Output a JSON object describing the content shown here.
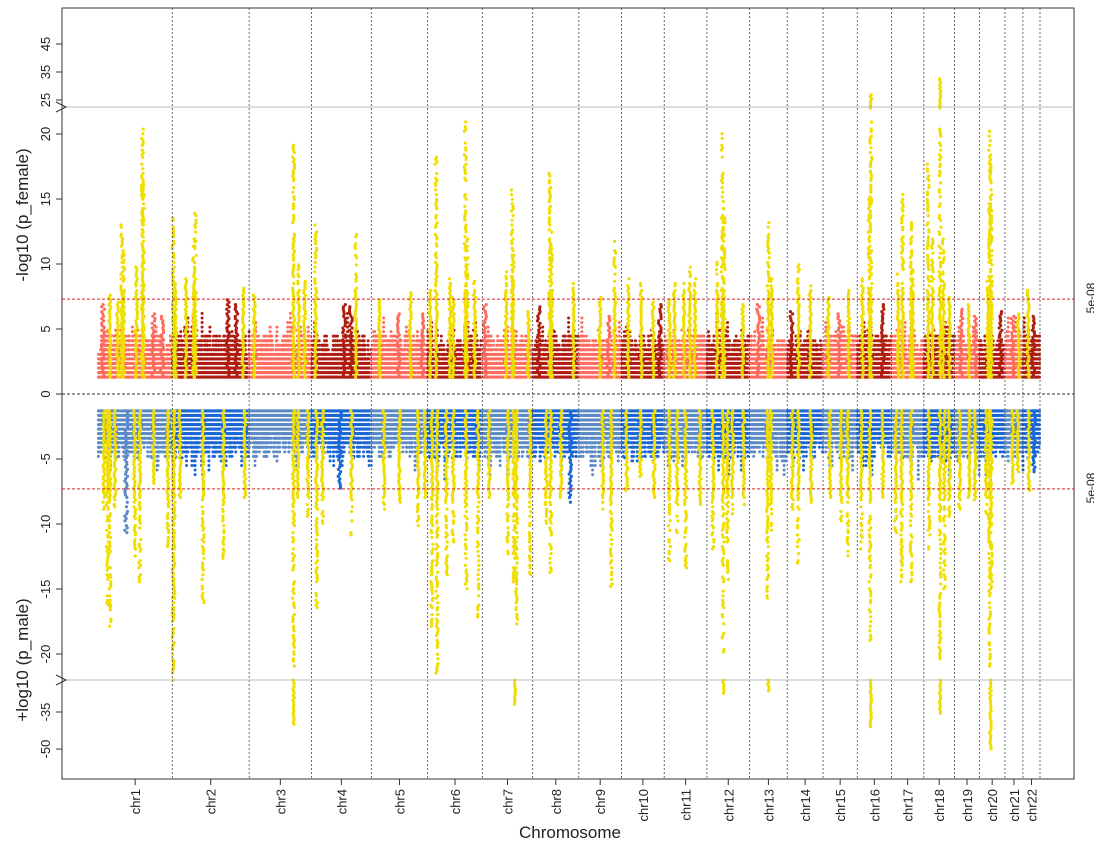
{
  "chart_data": {
    "type": "scatter",
    "subtype": "miami_plot",
    "xlabel": "Chromosome",
    "ylabel_top": "-log10 (p_female)",
    "ylabel_bottom": "+log10 (p_male)",
    "categories": [
      "chr1",
      "chr2",
      "chr3",
      "chr4",
      "chr5",
      "chr6",
      "chr7",
      "chr8",
      "chr9",
      "chr10",
      "chr11",
      "chr12",
      "chr13",
      "chr14",
      "chr15",
      "chr16",
      "chr17",
      "chr18",
      "chr19",
      "chr20",
      "chr21",
      "chr22"
    ],
    "y_ticks_top_main": [
      "0",
      "5",
      "10",
      "15",
      "20"
    ],
    "y_ticks_top_break": [
      "25",
      "35",
      "45"
    ],
    "y_ticks_bottom_main": [
      "-5",
      "-10",
      "-15",
      "-20"
    ],
    "y_ticks_bottom_break": [
      "-35",
      "-50"
    ],
    "y_main_range": [
      -22,
      22
    ],
    "axis_break": "y = ±22 (compressed upper segments)",
    "threshold": {
      "label": "5e-08",
      "value": 7.3,
      "color": "#dd2222"
    },
    "colors": {
      "female_light": "#ff6b5e",
      "female_dark": "#b01c10",
      "male_light": "#5b8ac6",
      "male_dark": "#1a66d6",
      "highlight": "#f0de00"
    },
    "series": [
      {
        "name": "female",
        "direction": "up"
      },
      {
        "name": "male",
        "direction": "down"
      }
    ],
    "chromosomes": [
      {
        "name": "chr1",
        "len": 8.7,
        "top_peaks": [
          [
            1.4,
            7.6,
            "h"
          ],
          [
            2.3,
            7.2,
            "h"
          ],
          [
            2.8,
            13.7,
            "h"
          ],
          [
            3.0,
            11.2,
            "h"
          ],
          [
            4.5,
            9.8,
            "h"
          ],
          [
            5.2,
            20.7,
            "h"
          ],
          [
            5.3,
            16.5,
            "h"
          ],
          [
            0.6,
            7.0,
            "n"
          ],
          [
            6.5,
            6.2,
            "n"
          ],
          [
            7.5,
            6.0,
            "n"
          ]
        ],
        "bot_peaks": [
          [
            0.7,
            9.0,
            "h"
          ],
          [
            1.1,
            16.5,
            "h"
          ],
          [
            1.4,
            18.1,
            "h"
          ],
          [
            2.0,
            8.8,
            "h"
          ],
          [
            3.3,
            10.8,
            "n"
          ],
          [
            4.3,
            12.5,
            "h"
          ],
          [
            4.9,
            14.5,
            "h"
          ],
          [
            6.5,
            7.0,
            "h"
          ],
          [
            8.2,
            12.0,
            "h"
          ]
        ],
        "top_gw": [],
        "bot_gw": []
      },
      {
        "name": "chr2",
        "len": 9.0,
        "top_peaks": [
          [
            0.1,
            13.7,
            "h"
          ],
          [
            0.4,
            8.5,
            "h"
          ],
          [
            1.6,
            9.0,
            "h"
          ],
          [
            2.5,
            12.0,
            "h"
          ],
          [
            2.7,
            14.0,
            "h"
          ],
          [
            6.5,
            7.3,
            "n"
          ],
          [
            7.5,
            7.0,
            "n"
          ],
          [
            8.3,
            8.2,
            "h"
          ]
        ],
        "bot_peaks": [
          [
            0.1,
            22.0,
            "h"
          ],
          [
            0.2,
            17.5,
            "h"
          ],
          [
            0.9,
            8.0,
            "h"
          ],
          [
            3.6,
            16.7,
            "h"
          ],
          [
            6.0,
            12.8,
            "h"
          ],
          [
            8.5,
            8.0,
            "h"
          ]
        ],
        "top_gw": [],
        "bot_gw": []
      },
      {
        "name": "chr3",
        "len": 7.3,
        "top_peaks": [
          [
            0.6,
            7.6,
            "h"
          ],
          [
            5.2,
            19.3,
            "h"
          ],
          [
            5.8,
            10.0,
            "h"
          ],
          [
            6.5,
            9.0,
            "h"
          ]
        ],
        "bot_peaks": [
          [
            5.2,
            21.0,
            "h"
          ],
          [
            5.7,
            8.0,
            "h"
          ],
          [
            6.9,
            9.5,
            "h"
          ]
        ],
        "top_gw": [],
        "bot_gw": [
          [
            5.2,
            40
          ]
        ]
      },
      {
        "name": "chr4",
        "len": 7.0,
        "top_peaks": [
          [
            0.5,
            13.3,
            "h"
          ],
          [
            5.2,
            12.6,
            "h"
          ],
          [
            3.8,
            6.9,
            "n"
          ],
          [
            4.6,
            6.8,
            "n"
          ]
        ],
        "bot_peaks": [
          [
            0.6,
            17.0,
            "h"
          ],
          [
            1.3,
            10.0,
            "h"
          ],
          [
            4.7,
            10.9,
            "h"
          ],
          [
            3.3,
            7.3,
            "n"
          ]
        ],
        "top_gw": [],
        "bot_gw": []
      },
      {
        "name": "chr5",
        "len": 6.6,
        "top_peaks": [
          [
            1.0,
            7.3,
            "h"
          ],
          [
            3.2,
            6.3,
            "n"
          ],
          [
            4.6,
            7.8,
            "h"
          ],
          [
            6.0,
            6.2,
            "n"
          ]
        ],
        "bot_peaks": [
          [
            1.5,
            9.2,
            "h"
          ],
          [
            3.3,
            8.5,
            "h"
          ],
          [
            5.5,
            10.3,
            "h"
          ],
          [
            6.3,
            8.0,
            "h"
          ]
        ],
        "top_gw": [],
        "bot_gw": []
      },
      {
        "name": "chr6",
        "len": 6.4,
        "top_peaks": [
          [
            0.3,
            8.0,
            "h"
          ],
          [
            1.0,
            18.7,
            "h"
          ],
          [
            2.6,
            9.0,
            "h"
          ],
          [
            3.0,
            7.5,
            "h"
          ],
          [
            4.4,
            21.0,
            "h"
          ],
          [
            4.6,
            12.0,
            "h"
          ],
          [
            5.5,
            8.8,
            "h"
          ]
        ],
        "bot_peaks": [
          [
            0.5,
            18.0,
            "h"
          ],
          [
            1.1,
            21.8,
            "h"
          ],
          [
            2.2,
            14.0,
            "h"
          ],
          [
            3.0,
            11.7,
            "h"
          ],
          [
            4.5,
            15.3,
            "h"
          ],
          [
            5.9,
            17.3,
            "h"
          ]
        ],
        "top_gw": [],
        "bot_gw": []
      },
      {
        "name": "chr7",
        "len": 5.9,
        "top_peaks": [
          [
            0.3,
            7.0,
            "n"
          ],
          [
            2.8,
            10.0,
            "h"
          ],
          [
            3.5,
            15.8,
            "h"
          ],
          [
            3.6,
            11.0,
            "h"
          ],
          [
            5.4,
            6.5,
            "h"
          ]
        ],
        "bot_peaks": [
          [
            0.8,
            8.0,
            "h"
          ],
          [
            3.0,
            12.5,
            "h"
          ],
          [
            3.7,
            14.5,
            "h"
          ],
          [
            4.0,
            18.0,
            "h"
          ],
          [
            5.6,
            14.0,
            "h"
          ]
        ],
        "top_gw": [],
        "bot_gw": [
          [
            3.8,
            32
          ]
        ]
      },
      {
        "name": "chr8",
        "len": 5.4,
        "top_peaks": [
          [
            0.7,
            6.8,
            "n"
          ],
          [
            2.0,
            17.1,
            "h"
          ],
          [
            2.2,
            12.5,
            "h"
          ],
          [
            4.8,
            9.0,
            "h"
          ]
        ],
        "bot_peaks": [
          [
            1.6,
            10.0,
            "h"
          ],
          [
            2.1,
            14.0,
            "h"
          ],
          [
            3.3,
            8.3,
            "h"
          ],
          [
            4.4,
            8.5,
            "n"
          ]
        ],
        "top_gw": [],
        "bot_gw": []
      },
      {
        "name": "chr9",
        "len": 5.0,
        "top_peaks": [
          [
            2.5,
            7.5,
            "h"
          ],
          [
            4.2,
            11.8,
            "h"
          ],
          [
            3.5,
            6.0,
            "n"
          ]
        ],
        "bot_peaks": [
          [
            3.8,
            15.5,
            "h"
          ],
          [
            2.8,
            9.0,
            "h"
          ]
        ],
        "top_gw": [],
        "bot_gw": []
      },
      {
        "name": "chr10",
        "len": 5.0,
        "top_peaks": [
          [
            0.8,
            9.1,
            "h"
          ],
          [
            2.3,
            8.5,
            "h"
          ],
          [
            3.7,
            7.2,
            "h"
          ],
          [
            4.5,
            7.0,
            "n"
          ]
        ],
        "bot_peaks": [
          [
            0.6,
            7.5,
            "h"
          ],
          [
            2.2,
            6.5,
            "h"
          ],
          [
            3.8,
            8.0,
            "h"
          ]
        ],
        "top_gw": [],
        "bot_gw": []
      },
      {
        "name": "chr11",
        "len": 5.0,
        "top_peaks": [
          [
            0.6,
            7.3,
            "h"
          ],
          [
            1.2,
            9.0,
            "h"
          ],
          [
            2.3,
            8.5,
            "h"
          ],
          [
            3.0,
            10.0,
            "h"
          ],
          [
            3.6,
            9.0,
            "h"
          ]
        ],
        "bot_peaks": [
          [
            0.6,
            13.0,
            "h"
          ],
          [
            1.5,
            11.0,
            "h"
          ],
          [
            2.5,
            13.5,
            "h"
          ],
          [
            4.2,
            8.5,
            "h"
          ]
        ],
        "top_gw": [],
        "bot_gw": []
      },
      {
        "name": "chr12",
        "len": 5.0,
        "top_peaks": [
          [
            1.2,
            10.2,
            "h"
          ],
          [
            1.8,
            20.1,
            "h"
          ],
          [
            2.0,
            14.5,
            "h"
          ],
          [
            4.2,
            7.0,
            "h"
          ]
        ],
        "bot_peaks": [
          [
            0.7,
            12.0,
            "h"
          ],
          [
            1.9,
            20.0,
            "h"
          ],
          [
            2.4,
            14.5,
            "h"
          ],
          [
            3.0,
            10.0,
            "h"
          ],
          [
            4.3,
            8.5,
            "h"
          ]
        ],
        "top_gw": [],
        "bot_gw": [
          [
            1.9,
            28
          ]
        ]
      },
      {
        "name": "chr13",
        "len": 4.4,
        "top_peaks": [
          [
            1.0,
            7.0,
            "n"
          ],
          [
            2.2,
            13.3,
            "h"
          ],
          [
            2.6,
            9.0,
            "h"
          ]
        ],
        "bot_peaks": [
          [
            2.1,
            16.0,
            "h"
          ],
          [
            2.5,
            11.0,
            "h"
          ]
        ],
        "top_gw": [],
        "bot_gw": [
          [
            2.2,
            27
          ]
        ]
      },
      {
        "name": "chr14",
        "len": 4.2,
        "top_peaks": [
          [
            0.5,
            6.5,
            "n"
          ],
          [
            1.3,
            10.0,
            "h"
          ],
          [
            2.7,
            8.5,
            "h"
          ]
        ],
        "bot_peaks": [
          [
            0.6,
            9.0,
            "h"
          ],
          [
            1.3,
            13.0,
            "h"
          ],
          [
            2.8,
            8.5,
            "h"
          ]
        ],
        "top_gw": [],
        "bot_gw": []
      },
      {
        "name": "chr15",
        "len": 4.0,
        "top_peaks": [
          [
            0.6,
            7.5,
            "h"
          ],
          [
            1.9,
            6.3,
            "n"
          ],
          [
            3.0,
            8.0,
            "h"
          ]
        ],
        "bot_peaks": [
          [
            0.8,
            8.0,
            "h"
          ],
          [
            2.1,
            10.0,
            "h"
          ],
          [
            2.9,
            12.5,
            "h"
          ]
        ],
        "top_gw": [],
        "bot_gw": []
      },
      {
        "name": "chr16",
        "len": 4.0,
        "top_peaks": [
          [
            0.6,
            9.0,
            "h"
          ],
          [
            1.6,
            21.0,
            "h"
          ],
          [
            1.4,
            15.0,
            "h"
          ],
          [
            3.0,
            7.0,
            "n"
          ]
        ],
        "bot_peaks": [
          [
            0.5,
            12.0,
            "h"
          ],
          [
            1.5,
            19.0,
            "h"
          ],
          [
            3.0,
            8.0,
            "h"
          ]
        ],
        "top_gw": [
          [
            1.6,
            27
          ]
        ],
        "bot_gw": [
          [
            1.6,
            41
          ]
        ]
      },
      {
        "name": "chr17",
        "len": 3.8,
        "top_peaks": [
          [
            0.8,
            9.5,
            "h"
          ],
          [
            1.3,
            15.5,
            "h"
          ],
          [
            2.3,
            13.3,
            "h"
          ],
          [
            2.5,
            9.8,
            "h"
          ]
        ],
        "bot_peaks": [
          [
            0.5,
            11.0,
            "h"
          ],
          [
            1.2,
            14.5,
            "h"
          ],
          [
            2.3,
            14.5,
            "h"
          ]
        ],
        "top_gw": [],
        "bot_gw": []
      },
      {
        "name": "chr18",
        "len": 3.6,
        "top_peaks": [
          [
            0.5,
            17.8,
            "h"
          ],
          [
            1.0,
            12.0,
            "h"
          ],
          [
            1.9,
            20.5,
            "h"
          ],
          [
            2.3,
            12.0,
            "h"
          ],
          [
            3.0,
            7.5,
            "h"
          ]
        ],
        "bot_peaks": [
          [
            0.6,
            12.0,
            "h"
          ],
          [
            1.9,
            20.5,
            "h"
          ],
          [
            2.4,
            15.0,
            "h"
          ],
          [
            3.0,
            9.5,
            "h"
          ]
        ],
        "top_gw": [
          [
            1.9,
            33
          ]
        ],
        "bot_gw": [
          [
            1.9,
            36
          ]
        ]
      },
      {
        "name": "chr19",
        "len": 2.9,
        "top_peaks": [
          [
            0.8,
            6.6,
            "n"
          ],
          [
            1.7,
            7.0,
            "h"
          ],
          [
            2.4,
            6.0,
            "n"
          ]
        ],
        "bot_peaks": [
          [
            0.6,
            9.0,
            "h"
          ],
          [
            1.7,
            8.0,
            "h"
          ],
          [
            2.4,
            8.3,
            "h"
          ]
        ],
        "top_gw": [],
        "bot_gw": []
      },
      {
        "name": "chr20",
        "len": 3.0,
        "top_peaks": [
          [
            1.2,
            20.2,
            "h"
          ],
          [
            1.4,
            17.7,
            "h"
          ],
          [
            1.0,
            9.0,
            "h"
          ],
          [
            2.5,
            6.5,
            "n"
          ]
        ],
        "bot_peaks": [
          [
            1.2,
            21.0,
            "h"
          ],
          [
            1.4,
            15.0,
            "h"
          ],
          [
            0.8,
            9.5,
            "h"
          ]
        ],
        "top_gw": [],
        "bot_gw": [
          [
            1.3,
            50
          ]
        ]
      },
      {
        "name": "chr21",
        "len": 2.1,
        "top_peaks": [
          [
            0.9,
            6.0,
            "n"
          ],
          [
            1.6,
            6.2,
            "h"
          ]
        ],
        "bot_peaks": [
          [
            0.9,
            7.0,
            "h"
          ],
          [
            1.5,
            6.0,
            "h"
          ]
        ],
        "top_gw": [],
        "bot_gw": []
      },
      {
        "name": "chr22",
        "len": 2.0,
        "top_peaks": [
          [
            0.6,
            8.2,
            "h"
          ],
          [
            1.2,
            6.0,
            "n"
          ]
        ],
        "bot_peaks": [
          [
            0.7,
            7.5,
            "h"
          ],
          [
            1.3,
            6.0,
            "n"
          ]
        ],
        "top_gw": [],
        "bot_gw": []
      }
    ]
  }
}
